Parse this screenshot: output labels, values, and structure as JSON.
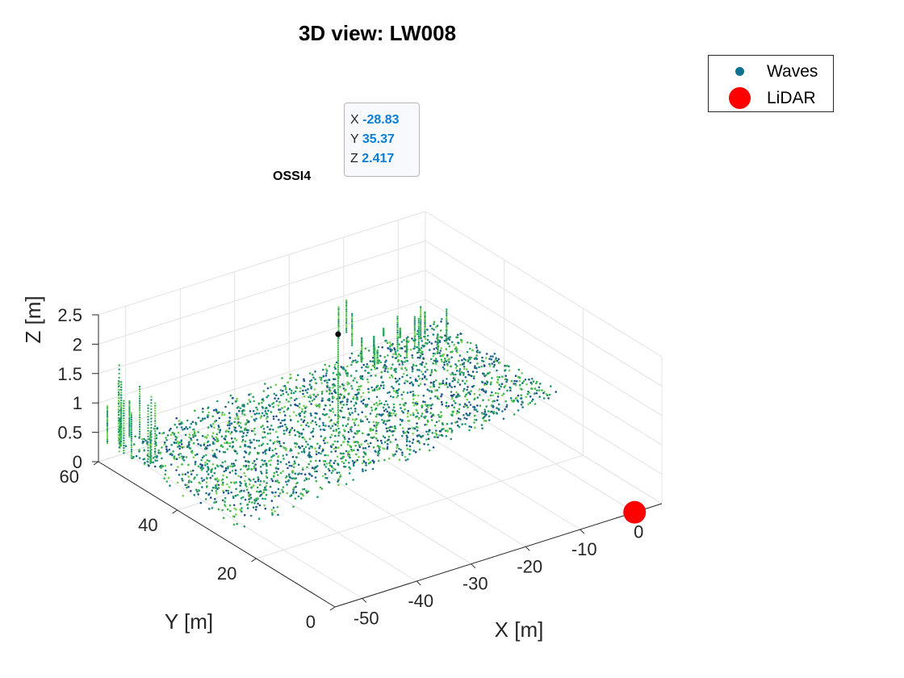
{
  "chart_data": {
    "type": "scatter",
    "title": "3D view: LW008",
    "xlabel": "X [m]",
    "ylabel": "Y [m]",
    "zlabel": "Z [m]",
    "xlim": [
      -55,
      5
    ],
    "ylim": [
      0,
      60
    ],
    "zlim": [
      0,
      2.5
    ],
    "x_ticks": [
      "-50",
      "-40",
      "-30",
      "-20",
      "-10",
      "0"
    ],
    "y_ticks": [
      "0",
      "20",
      "40",
      "60"
    ],
    "z_ticks": [
      "0",
      "0.5",
      "1",
      "1.5",
      "2",
      "2.5"
    ],
    "grid": true,
    "legend_position": "top-right",
    "series": [
      {
        "name": "Waves",
        "marker": "dot",
        "color": "#0e7190",
        "description_colormap": [
          "#1f4e8c",
          "#1c8a78",
          "#3bb34b",
          "#7fd34e"
        ]
      },
      {
        "name": "LiDAR",
        "marker": "circle",
        "color": "#ff0000",
        "points": [
          {
            "x": 0,
            "y": 0,
            "z": 0
          }
        ]
      }
    ],
    "datatip": {
      "x_label": "X",
      "x_value": "-28.83",
      "y_label": "Y",
      "y_value": "35.37",
      "z_label": "Z",
      "z_value": "2.417"
    },
    "annotation": {
      "text": "OSSI4",
      "x": -28.83,
      "y": 35.37,
      "z": 2.417
    }
  }
}
